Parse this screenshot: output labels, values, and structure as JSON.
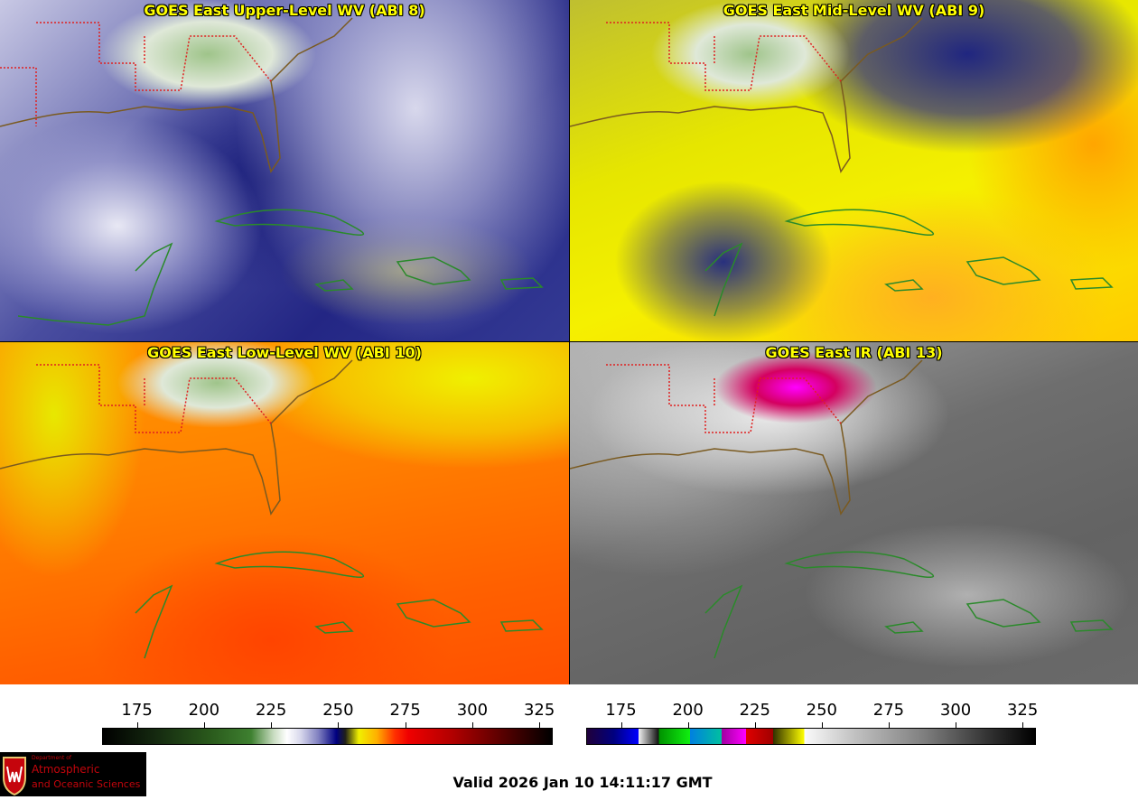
{
  "panels": [
    {
      "title": "GOES East Upper-Level WV (ABI 8)"
    },
    {
      "title": "GOES East Mid-Level WV (ABI 9)"
    },
    {
      "title": "GOES East Low-Level WV (ABI 10)"
    },
    {
      "title": "GOES East IR (ABI 13)"
    }
  ],
  "colorbars": [
    {
      "name": "water-vapor",
      "ticks": [
        "175",
        "200",
        "225",
        "250",
        "275",
        "300",
        "325"
      ],
      "range": [
        162,
        330
      ]
    },
    {
      "name": "infrared",
      "ticks": [
        "175",
        "200",
        "225",
        "250",
        "275",
        "300",
        "325"
      ],
      "range": [
        162,
        330
      ]
    }
  ],
  "logo": {
    "line1": "Department of",
    "line2": "Atmospheric",
    "line3": "and Oceanic Sciences"
  },
  "valid_time": "Valid 2026 Jan 10 14:11:17 GMT",
  "colors": {
    "coast": "#2a8a2a",
    "states": "#e02020",
    "title": "#ffff00"
  }
}
